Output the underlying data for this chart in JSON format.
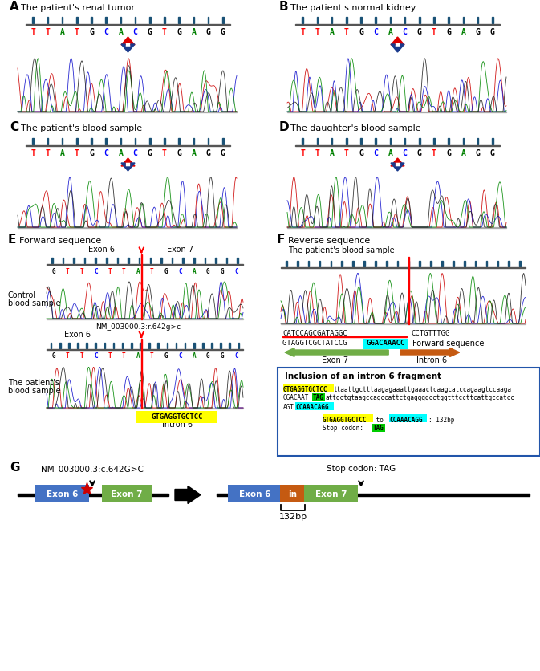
{
  "panel_labels": [
    "A",
    "B",
    "C",
    "D",
    "E",
    "F",
    "G"
  ],
  "panel_A_title": "The patient's renal tumor",
  "panel_B_title": "The patient's normal kidney",
  "panel_C_title": "The patient's blood sample",
  "panel_D_title": "The daughter's blood sample",
  "panel_E_title": "Forward sequence",
  "panel_F_title": "Reverse sequence",
  "seq_letters": [
    "T",
    "T",
    "A",
    "T",
    "G",
    "C",
    "A",
    "C",
    "G",
    "T",
    "G",
    "A",
    "G",
    "G"
  ],
  "seq_colors": [
    "red",
    "red",
    "green",
    "red",
    "black",
    "blue",
    "green",
    "blue",
    "black",
    "red",
    "black",
    "green",
    "black",
    "black"
  ],
  "arrow_red": "#dd0000",
  "arrow_blue": "#1a3a8c",
  "exon6_color": "#4472c4",
  "exon7_color": "#70ad47",
  "intron_color": "#c55a11",
  "red_color": "#cc0000",
  "nm_label": "NM_003000.3:r.642g>c",
  "nm_label_G": "NM_003000.3:c.642G>C",
  "exon6_label": "Exon 6",
  "exon7_label": "Exon 7",
  "intron6_label": "Intron 6",
  "control_label_line1": "Control",
  "control_label_line2": "blood sample",
  "patient_label_line1": "The patient's",
  "patient_label_line2": "blood sample",
  "forward_seq_label": "Forward sequence",
  "inclusion_title": "Inclusion of an intron 6 fragment",
  "stop_codon_label": "Stop codon: TAG",
  "bp_label": "132bp",
  "gtgagg": "GTGAGGTGCTCC",
  "ccaaacagg": "CCAAACAGG",
  "in_label": "in",
  "yellow_highlight": "#ffff00",
  "cyan_highlight": "#00ffff",
  "green_arrow_color": "#70ad47",
  "brown_arrow_color": "#c55a11",
  "tag_highlight": "#00cc00",
  "inclusion_box_color": "#2255aa",
  "fig_width": 6.73,
  "fig_height": 8.37
}
